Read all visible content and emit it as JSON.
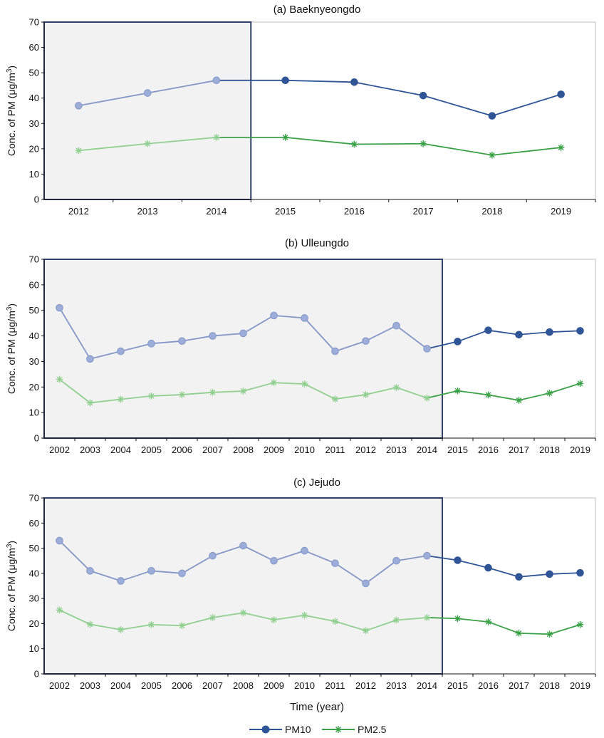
{
  "chart_data": [
    {
      "type": "line",
      "title": "(a) Baeknyeongdo",
      "ylabel": "Conc. of PM (μg/m³)",
      "ylabel_main": "Conc. of PM (μg/m",
      "ylabel_sup": "3",
      "ylabel_tail": ")",
      "xlabel": "",
      "ylim": [
        0,
        70
      ],
      "yticks": [
        0,
        10,
        20,
        30,
        40,
        50,
        60,
        70
      ],
      "categories": [
        "2012",
        "2013",
        "2014",
        "2015",
        "2016",
        "2017",
        "2018",
        "2019"
      ],
      "shaded_until": "2014",
      "series": [
        {
          "name": "PM10",
          "values": [
            37,
            42,
            47,
            47,
            46.3,
            41,
            33,
            41.5
          ]
        },
        {
          "name": "PM2.5",
          "values": [
            19.3,
            22,
            24.5,
            24.5,
            21.8,
            22,
            17.5,
            20.5
          ]
        }
      ]
    },
    {
      "type": "line",
      "title": "(b) Ulleungdo",
      "ylabel": "Conc. of PM (μg/m³)",
      "ylabel_main": "Conc. of PM (μg/m",
      "ylabel_sup": "3",
      "ylabel_tail": ")",
      "xlabel": "",
      "ylim": [
        0,
        70
      ],
      "yticks": [
        0,
        10,
        20,
        30,
        40,
        50,
        60,
        70
      ],
      "categories": [
        "2002",
        "2003",
        "2004",
        "2005",
        "2006",
        "2007",
        "2008",
        "2009",
        "2010",
        "2011",
        "2012",
        "2013",
        "2014",
        "2015",
        "2016",
        "2017",
        "2018",
        "2019"
      ],
      "shaded_until": "2014",
      "series": [
        {
          "name": "PM10",
          "values": [
            51,
            31,
            34,
            37,
            38,
            40,
            41,
            48,
            47,
            34,
            38,
            44,
            35,
            37.8,
            42.2,
            40.5,
            41.5,
            42
          ]
        },
        {
          "name": "PM2.5",
          "values": [
            23,
            13.8,
            15.2,
            16.5,
            17,
            17.9,
            18.4,
            21.7,
            21.2,
            15.3,
            17,
            19.8,
            15.7,
            18.5,
            16.9,
            14.8,
            17.6,
            21.4
          ]
        }
      ]
    },
    {
      "type": "line",
      "title": "(c) Jejudo",
      "ylabel": "Conc. of PM (μg/m³)",
      "ylabel_main": "Conc. of PM (μg/m",
      "ylabel_sup": "3",
      "ylabel_tail": ")",
      "xlabel": "Time (year)",
      "ylim": [
        0,
        70
      ],
      "yticks": [
        0,
        10,
        20,
        30,
        40,
        50,
        60,
        70
      ],
      "categories": [
        "2002",
        "2003",
        "2004",
        "2005",
        "2006",
        "2007",
        "2008",
        "2009",
        "2010",
        "2011",
        "2012",
        "2013",
        "2014",
        "2015",
        "2016",
        "2017",
        "2018",
        "2019"
      ],
      "shaded_until": "2014",
      "series": [
        {
          "name": "PM10",
          "values": [
            53,
            41,
            37,
            41,
            40,
            47,
            51,
            45,
            49,
            44,
            36,
            45,
            47,
            45.2,
            42.2,
            38.6,
            39.7,
            40.2
          ]
        },
        {
          "name": "PM2.5",
          "values": [
            25.4,
            19.7,
            17.6,
            19.6,
            19.2,
            22.4,
            24.3,
            21.5,
            23.3,
            20.9,
            17.2,
            21.4,
            22.4,
            22,
            20.7,
            16.2,
            15.8,
            19.6
          ]
        }
      ]
    }
  ],
  "legend": {
    "position": "bottom-center",
    "items": [
      {
        "name": "PM10",
        "marker": "circle"
      },
      {
        "name": "PM2.5",
        "marker": "asterisk"
      }
    ]
  },
  "colors": {
    "pm10_dark": "#2f5597",
    "pm10_light": "#8497c8",
    "pm10_marker_light": "#9badd8",
    "pm25_dark": "#3aa146",
    "pm25_light": "#8fd08f",
    "shade": "#f2f2f2",
    "shade_border": "#2f3f6b",
    "axis": "#111111"
  }
}
